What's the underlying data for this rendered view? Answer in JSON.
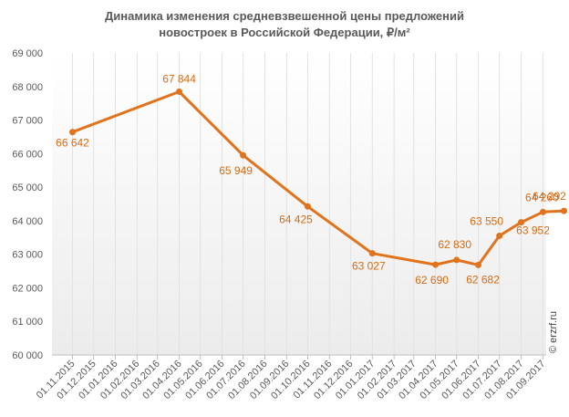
{
  "chart_data": {
    "type": "line",
    "title_lines": [
      "Динамика  изменения средневзвешенной цены предложений",
      "новостроек в Российской Федерации, ₽/м²"
    ],
    "watermark": "© erzrf.ru",
    "ylim": [
      60000,
      69000
    ],
    "y_ticks": [
      "60 000",
      "61 000",
      "62 000",
      "63 000",
      "64 000",
      "65 000",
      "66 000",
      "67 000",
      "68 000",
      "69 000"
    ],
    "y_tick_values": [
      60000,
      61000,
      62000,
      63000,
      64000,
      65000,
      66000,
      67000,
      68000,
      69000
    ],
    "categories": [
      "01.11.2015",
      "01.12.2015",
      "01.01.2016",
      "01.02.2016",
      "01.03.2016",
      "01.04.2016",
      "01.05.2016",
      "01.06.2016",
      "01.07.2016",
      "01.08.2016",
      "01.09.2016",
      "01.10.2016",
      "01.11.2016",
      "01.12.2016",
      "01.01.2017",
      "01.02.2017",
      "01.03.2017",
      "01.04.2017",
      "01.05.2017",
      "01.06.2017",
      "01.07.2017",
      "01.08.2017",
      "01.09.2017"
    ],
    "grid": "vertical",
    "legend": "none",
    "series": [
      {
        "color": "#e0731c",
        "points": [
          {
            "x": "01.11.2015",
            "y": 66642,
            "label": "66 642"
          },
          {
            "x": "01.04.2016",
            "y": 67844,
            "label": "67 844"
          },
          {
            "x": "01.07.2016",
            "y": 65949,
            "label": "65 949"
          },
          {
            "x": "01.10.2016",
            "y": 64425,
            "label": "64 425"
          },
          {
            "x": "01.01.2017",
            "y": 63027,
            "label": "63 027"
          },
          {
            "x": "01.04.2017",
            "y": 62690,
            "label": "62 690"
          },
          {
            "x": "01.05.2017",
            "y": 62830,
            "label": "62 830"
          },
          {
            "x": "01.06.2017",
            "y": 62682,
            "label": "62 682"
          },
          {
            "x": "01.07.2017",
            "y": 63550,
            "label": "63 550"
          },
          {
            "x": "01.08.2017",
            "y": 63952,
            "label": "63 952"
          },
          {
            "x": "01.09.2017",
            "y": 64260,
            "label": "64 260"
          },
          {
            "x": "01.10.2017",
            "y": 64292,
            "label": "64 292"
          }
        ]
      }
    ]
  }
}
